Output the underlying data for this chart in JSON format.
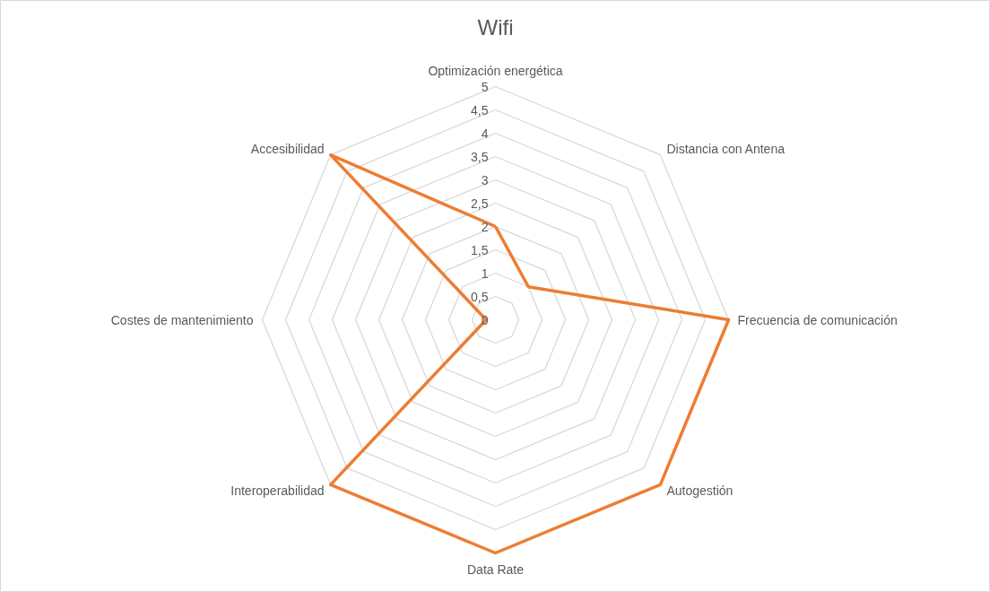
{
  "chart_data": {
    "type": "radar",
    "title": "Wifi",
    "categories": [
      "Optimización energética",
      "Distancia con Antena",
      "Frecuencia de comunicación",
      "Autogestión",
      "Data Rate",
      "Interoperabilidad",
      "Costes de mantenimiento",
      "Accesibilidad"
    ],
    "series": [
      {
        "color": "#ed7d31",
        "values": [
          2,
          1,
          5,
          5,
          5,
          5,
          0.2,
          5
        ]
      }
    ],
    "ylim": [
      0,
      5
    ],
    "yticks": [
      0,
      {
        "value": 0.5,
        "label": "0,5"
      },
      1,
      {
        "value": 1.5,
        "label": "1,5"
      },
      2,
      {
        "value": 2.5,
        "label": "2,5"
      },
      3,
      {
        "value": 3.5,
        "label": "3,5"
      },
      4,
      {
        "value": 4.5,
        "label": "4,5"
      },
      5
    ],
    "grid": true
  }
}
